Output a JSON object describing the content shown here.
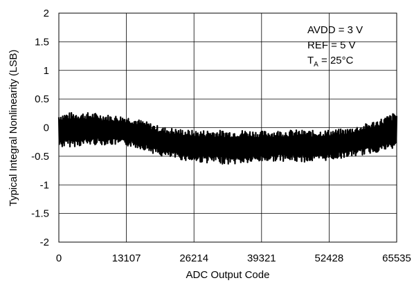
{
  "chart_data": {
    "type": "line",
    "title": "",
    "xlabel": "ADC Output Code",
    "ylabel": "Typical Integral Nonlinearity (LSB)",
    "xlim": [
      0,
      65535
    ],
    "ylim": [
      -2,
      2
    ],
    "x_ticks": [
      "0",
      "13107",
      "26214",
      "39321",
      "52428",
      "65535"
    ],
    "x_tick_values": [
      0,
      13107,
      26214,
      39321,
      52428,
      65535
    ],
    "y_ticks": [
      "2",
      "1.5",
      "1",
      "0.5",
      "0",
      "-0.5",
      "-1",
      "-1.5",
      "-2"
    ],
    "y_tick_values": [
      2,
      1.5,
      1,
      0.5,
      0,
      -0.5,
      -1,
      -1.5,
      -2
    ],
    "grid": true,
    "annotations": {
      "line1": "AVDD = 3 V",
      "line2": "REF = 5 V",
      "line3_main": "T",
      "line3_sub": "A",
      "line3_rest": " = 25°C"
    },
    "series": [
      {
        "x": [
          0,
          3277,
          6554,
          9830,
          13107,
          16384,
          19661,
          22938,
          26214,
          29491,
          32768,
          36045,
          39321,
          42598,
          45875,
          49152,
          52428,
          55705,
          58982,
          62258,
          65535
        ],
        "upper": [
          0.25,
          0.27,
          0.26,
          0.22,
          0.2,
          0.12,
          0.02,
          -0.02,
          -0.05,
          -0.04,
          -0.05,
          -0.04,
          -0.06,
          -0.05,
          -0.04,
          -0.05,
          -0.04,
          -0.02,
          0.05,
          0.15,
          0.28
        ],
        "lower": [
          -0.35,
          -0.33,
          -0.3,
          -0.3,
          -0.32,
          -0.38,
          -0.5,
          -0.55,
          -0.6,
          -0.62,
          -0.64,
          -0.63,
          -0.6,
          -0.58,
          -0.6,
          -0.6,
          -0.57,
          -0.52,
          -0.48,
          -0.42,
          -0.38
        ],
        "color": "#000000"
      }
    ]
  }
}
